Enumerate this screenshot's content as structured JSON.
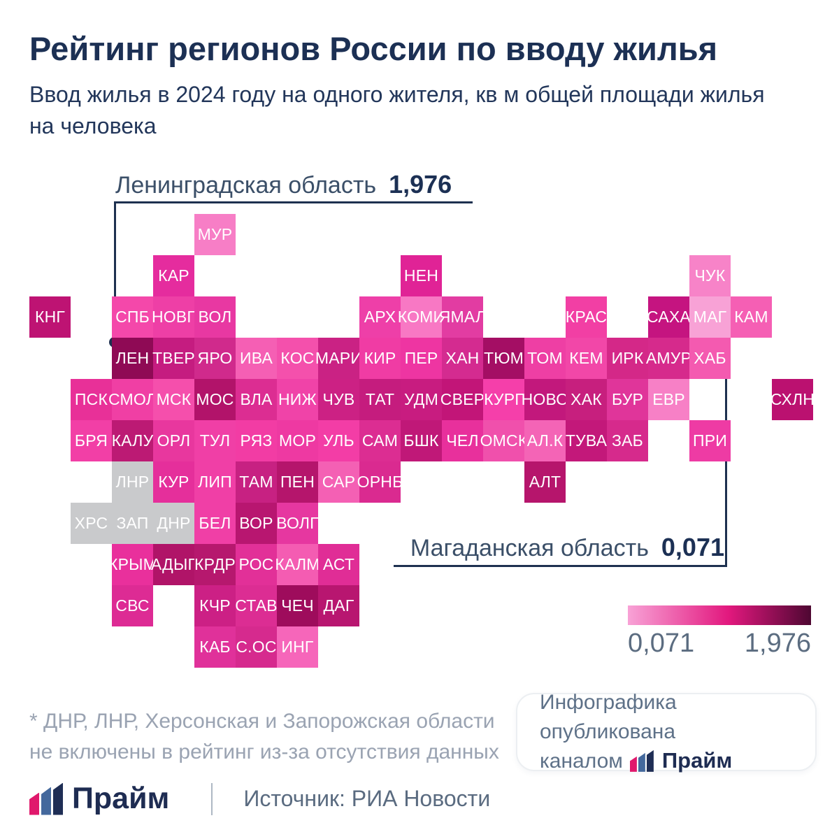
{
  "header": {
    "title": "Рейтинг регионов России по вводу жилья",
    "subtitle_line1": "Ввод жилья в 2024 году на одного жителя, кв м общей площади жилья",
    "subtitle_line2": "на человека"
  },
  "annotations": {
    "max": {
      "label": "Ленинградская область",
      "value": "1,976"
    },
    "min": {
      "label": "Магаданская область",
      "value": "0,071"
    }
  },
  "legend": {
    "min_label": "0,071",
    "max_label": "1,976",
    "gradient": [
      "#F8A2D6",
      "#E2187E",
      "#4E0732"
    ]
  },
  "footnote": {
    "line1": "* ДНР, ЛНР, Херсонская и Запорожская области",
    "line2": "не включены в рейтинг из-за отсутствия данных"
  },
  "badge": {
    "line1": "Инфографика опубликована",
    "line2_prefix": "каналом",
    "brand": "Прайм"
  },
  "footer": {
    "brand": "Прайм",
    "source": "Источник: РИА Новости"
  },
  "chart_data": {
    "type": "heatmap",
    "title": "Рейтинг регионов России по вводу жилья",
    "subtitle": "Ввод жилья в 2024 году на одного жителя, кв м общей площади жилья на человека",
    "value_range": [
      0.071,
      1.976
    ],
    "values_encoded_by_color": true,
    "legend_position": "bottom-right",
    "labeled_points": [
      {
        "region": "Ленинградская область",
        "code": "ЛЕН",
        "value": 1.976
      },
      {
        "region": "Магаданская область",
        "code": "МАГ",
        "value": 0.071
      }
    ],
    "excluded_regions": [
      "ДНР",
      "ЛНР",
      "ХРС",
      "ЗАП"
    ]
  },
  "map": {
    "tile": 59,
    "tiles": [
      {
        "label": "МУР",
        "col": 4,
        "row": 0,
        "color": "#F77EC6"
      },
      {
        "label": "КАР",
        "col": 3,
        "row": 1,
        "color": "#E52C9E"
      },
      {
        "label": "НЕН",
        "col": 9,
        "row": 1,
        "color": "#E02396"
      },
      {
        "label": "ЧУК",
        "col": 16,
        "row": 1,
        "color": "#F783C8"
      },
      {
        "label": "КНГ",
        "col": 0,
        "row": 2,
        "color": "#BE1373"
      },
      {
        "label": "СПБ",
        "col": 2,
        "row": 2,
        "color": "#F448AA"
      },
      {
        "label": "НОВГ",
        "col": 3,
        "row": 2,
        "color": "#EE3FA6"
      },
      {
        "label": "ВОЛ",
        "col": 4,
        "row": 2,
        "color": "#E838A2"
      },
      {
        "label": "АРХ",
        "col": 8,
        "row": 2,
        "color": "#EE3FA8"
      },
      {
        "label": "КОМИ",
        "col": 9,
        "row": 2,
        "color": "#F878C4"
      },
      {
        "label": "ЯМАЛ",
        "col": 10,
        "row": 2,
        "color": "#E23CA2"
      },
      {
        "label": "КРАС",
        "col": 13,
        "row": 2,
        "color": "#F23FA4"
      },
      {
        "label": "САХА",
        "col": 15,
        "row": 2,
        "color": "#C51480"
      },
      {
        "label": "МАГ",
        "col": 16,
        "row": 2,
        "color": "#F8A2D6"
      },
      {
        "label": "КАМ",
        "col": 17,
        "row": 2,
        "color": "#F55FB4"
      },
      {
        "label": "ЛЕН",
        "col": 2,
        "row": 3,
        "color": "#8F0A55"
      },
      {
        "label": "ТВЕР",
        "col": 3,
        "row": 3,
        "color": "#C51C80"
      },
      {
        "label": "ЯРО",
        "col": 4,
        "row": 3,
        "color": "#D02A8C"
      },
      {
        "label": "ИВА",
        "col": 5,
        "row": 3,
        "color": "#F55FB4"
      },
      {
        "label": "КОС",
        "col": 6,
        "row": 3,
        "color": "#F450AC"
      },
      {
        "label": "МАРИ",
        "col": 7,
        "row": 3,
        "color": "#CA2284"
      },
      {
        "label": "КИР",
        "col": 8,
        "row": 3,
        "color": "#F03CA4"
      },
      {
        "label": "ПЕР",
        "col": 9,
        "row": 3,
        "color": "#EE35A2"
      },
      {
        "label": "ХАН",
        "col": 10,
        "row": 3,
        "color": "#D42B90"
      },
      {
        "label": "ТЮМ",
        "col": 11,
        "row": 3,
        "color": "#A40E64"
      },
      {
        "label": "ТОМ",
        "col": 12,
        "row": 3,
        "color": "#EE3FA4"
      },
      {
        "label": "КЕМ",
        "col": 13,
        "row": 3,
        "color": "#F247A8"
      },
      {
        "label": "ИРК",
        "col": 14,
        "row": 3,
        "color": "#D42888"
      },
      {
        "label": "АМУР",
        "col": 15,
        "row": 3,
        "color": "#D62A8C"
      },
      {
        "label": "ХАБ",
        "col": 16,
        "row": 3,
        "color": "#F45AB0"
      },
      {
        "label": "ПСК",
        "col": 1,
        "row": 4,
        "color": "#E83098"
      },
      {
        "label": "СМОЛ",
        "col": 2,
        "row": 4,
        "color": "#F03FA4"
      },
      {
        "label": "МСК",
        "col": 3,
        "row": 4,
        "color": "#F54FAC"
      },
      {
        "label": "МОС",
        "col": 4,
        "row": 4,
        "color": "#B2136A"
      },
      {
        "label": "ВЛА",
        "col": 5,
        "row": 4,
        "color": "#DC2D92"
      },
      {
        "label": "НИЖ",
        "col": 6,
        "row": 4,
        "color": "#F043A8"
      },
      {
        "label": "ЧУВ",
        "col": 7,
        "row": 4,
        "color": "#CC2184"
      },
      {
        "label": "ТАТ",
        "col": 8,
        "row": 4,
        "color": "#C51C7E"
      },
      {
        "label": "УДМ",
        "col": 9,
        "row": 4,
        "color": "#C81C80"
      },
      {
        "label": "СВЕР",
        "col": 10,
        "row": 4,
        "color": "#C21578"
      },
      {
        "label": "КУРГ",
        "col": 11,
        "row": 4,
        "color": "#F53FAA"
      },
      {
        "label": "НОВО",
        "col": 12,
        "row": 4,
        "color": "#C2187C"
      },
      {
        "label": "ХАК",
        "col": 13,
        "row": 4,
        "color": "#C71F7E"
      },
      {
        "label": "БУР",
        "col": 14,
        "row": 4,
        "color": "#E0359A"
      },
      {
        "label": "ЕВР",
        "col": 15,
        "row": 4,
        "color": "#F780C6"
      },
      {
        "label": "СХЛН",
        "col": 18,
        "row": 4,
        "color": "#BB1170"
      },
      {
        "label": "БРЯ",
        "col": 1,
        "row": 5,
        "color": "#F23FA6"
      },
      {
        "label": "КАЛУ",
        "col": 2,
        "row": 5,
        "color": "#BC1A74"
      },
      {
        "label": "ОРЛ",
        "col": 3,
        "row": 5,
        "color": "#E8379E"
      },
      {
        "label": "ТУЛ",
        "col": 4,
        "row": 5,
        "color": "#F03FA6"
      },
      {
        "label": "РЯЗ",
        "col": 5,
        "row": 5,
        "color": "#F23CA4"
      },
      {
        "label": "МОР",
        "col": 6,
        "row": 5,
        "color": "#EE39A2"
      },
      {
        "label": "УЛЬ",
        "col": 7,
        "row": 5,
        "color": "#F33DA6"
      },
      {
        "label": "САМ",
        "col": 8,
        "row": 5,
        "color": "#DC2D92"
      },
      {
        "label": "БШК",
        "col": 9,
        "row": 5,
        "color": "#C01878"
      },
      {
        "label": "ЧЕЛ",
        "col": 10,
        "row": 5,
        "color": "#E8309C"
      },
      {
        "label": "ОМСК",
        "col": 11,
        "row": 5,
        "color": "#F050AC"
      },
      {
        "label": "АЛ.К",
        "col": 12,
        "row": 5,
        "color": "#F464B6"
      },
      {
        "label": "ТУВА",
        "col": 13,
        "row": 5,
        "color": "#C3187A"
      },
      {
        "label": "ЗАБ",
        "col": 14,
        "row": 5,
        "color": "#D62A8C"
      },
      {
        "label": "ПРИ",
        "col": 16,
        "row": 5,
        "color": "#EE3BA4"
      },
      {
        "label": "ЛНР",
        "col": 2,
        "row": 6,
        "color": "#C9CACC"
      },
      {
        "label": "КУР",
        "col": 3,
        "row": 6,
        "color": "#E52F9B"
      },
      {
        "label": "ЛИП",
        "col": 4,
        "row": 6,
        "color": "#F03FA6"
      },
      {
        "label": "ТАМ",
        "col": 5,
        "row": 6,
        "color": "#C72182"
      },
      {
        "label": "ПЕН",
        "col": 6,
        "row": 6,
        "color": "#B5156C"
      },
      {
        "label": "САР",
        "col": 7,
        "row": 6,
        "color": "#F460B4"
      },
      {
        "label": "ОРНБ",
        "col": 8,
        "row": 6,
        "color": "#DA2A90"
      },
      {
        "label": "АЛТ",
        "col": 12,
        "row": 6,
        "color": "#B6156C"
      },
      {
        "label": "ХРС",
        "col": 1,
        "row": 7,
        "color": "#C9CACC"
      },
      {
        "label": "ЗАП",
        "col": 2,
        "row": 7,
        "color": "#C9CACC"
      },
      {
        "label": "ДНР",
        "col": 3,
        "row": 7,
        "color": "#C9CACC"
      },
      {
        "label": "БЕЛ",
        "col": 4,
        "row": 7,
        "color": "#F03FA6"
      },
      {
        "label": "ВОР",
        "col": 5,
        "row": 7,
        "color": "#B81670"
      },
      {
        "label": "ВОЛГ",
        "col": 6,
        "row": 7,
        "color": "#E637A0"
      },
      {
        "label": "КРЫМ",
        "col": 2,
        "row": 8,
        "color": "#E9309C"
      },
      {
        "label": "АДЫГ",
        "col": 3,
        "row": 8,
        "color": "#B01468"
      },
      {
        "label": "КРДР",
        "col": 4,
        "row": 8,
        "color": "#B6186E"
      },
      {
        "label": "РОС",
        "col": 5,
        "row": 8,
        "color": "#E23098"
      },
      {
        "label": "КАЛМ",
        "col": 6,
        "row": 8,
        "color": "#F45CB2"
      },
      {
        "label": "АСТ",
        "col": 7,
        "row": 8,
        "color": "#E02D96"
      },
      {
        "label": "СВС",
        "col": 2,
        "row": 9,
        "color": "#DD2B94"
      },
      {
        "label": "КЧР",
        "col": 4,
        "row": 9,
        "color": "#CC2085"
      },
      {
        "label": "СТАВ",
        "col": 5,
        "row": 9,
        "color": "#DC2D93"
      },
      {
        "label": "ЧЕЧ",
        "col": 6,
        "row": 9,
        "color": "#9E0C5C"
      },
      {
        "label": "ДАГ",
        "col": 7,
        "row": 9,
        "color": "#B81670"
      },
      {
        "label": "КАБ",
        "col": 4,
        "row": 10,
        "color": "#E0319A"
      },
      {
        "label": "С.ОС",
        "col": 5,
        "row": 10,
        "color": "#D62A8E"
      },
      {
        "label": "ИНГ",
        "col": 6,
        "row": 10,
        "color": "#F666BA"
      }
    ]
  }
}
